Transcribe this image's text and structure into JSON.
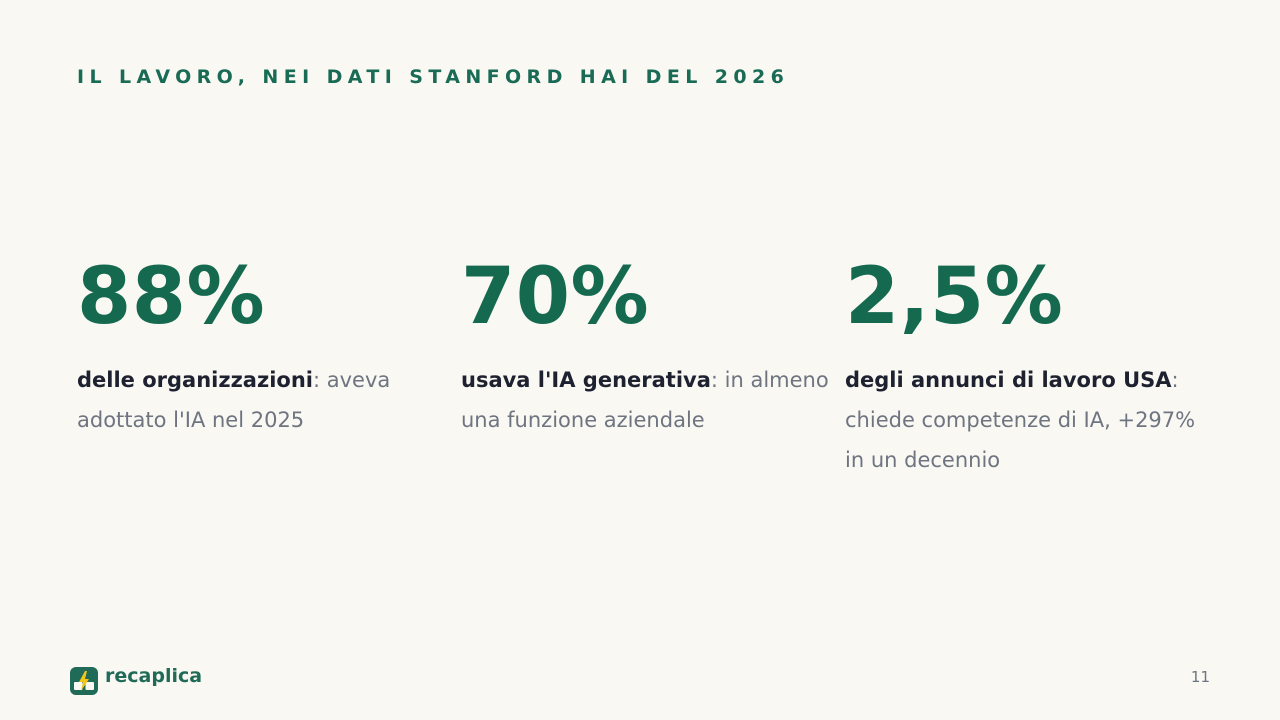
{
  "header": {
    "eyebrow": "IL LAVORO, NEI DATI STANFORD HAI DEL 2026"
  },
  "stats": [
    {
      "value": "88%",
      "strong": "delle organizzazioni",
      "rest": ": aveva adottato l'IA nel 2025"
    },
    {
      "value": "70%",
      "strong": "usava l'IA generativa",
      "rest": ": in almeno una funzione aziendale"
    },
    {
      "value": "2,5%",
      "strong": "degli annunci di lavoro USA",
      "rest": ": chiede competenze di IA, +297% in un decennio"
    }
  ],
  "footer": {
    "brand": "recaplica",
    "logo_icon": "lightning-book-icon",
    "page_number": "11"
  },
  "colors": {
    "background": "#f9f8f3",
    "accent": "#14694f",
    "text_strong": "#1d2130",
    "text_muted": "#6e7480",
    "logo_bolt": "#f5c518"
  }
}
